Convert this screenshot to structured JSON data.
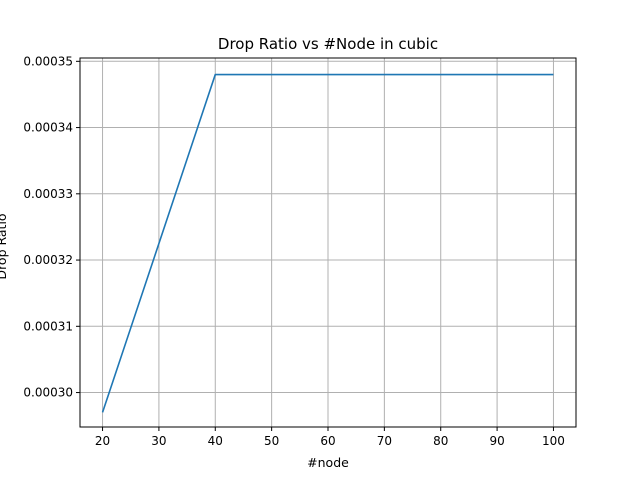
{
  "chart_data": {
    "type": "line",
    "title": "Drop Ratio vs #Node in cubic",
    "xlabel": "#node",
    "ylabel": "Drop Ratio",
    "x": [
      20,
      40,
      60,
      80,
      100
    ],
    "series": [
      {
        "values": [
          0.000297,
          0.000348,
          0.000348,
          0.000348,
          0.000348
        ],
        "color": "#1f77b4"
      }
    ],
    "x_ticks": [
      20,
      30,
      40,
      50,
      60,
      70,
      80,
      90,
      100
    ],
    "x_tick_labels": [
      "20",
      "30",
      "40",
      "50",
      "60",
      "70",
      "80",
      "90",
      "100"
    ],
    "y_ticks": [
      0.0003,
      0.00031,
      0.00032,
      0.00033,
      0.00034,
      0.00035
    ],
    "y_tick_labels": [
      "0.00030",
      "0.00031",
      "0.00032",
      "0.00033",
      "0.00034",
      "0.00035"
    ],
    "xlim": [
      16,
      104
    ],
    "ylim": [
      0.0002948,
      0.0003505
    ],
    "grid": true,
    "grid_color": "#b0b0b0"
  }
}
